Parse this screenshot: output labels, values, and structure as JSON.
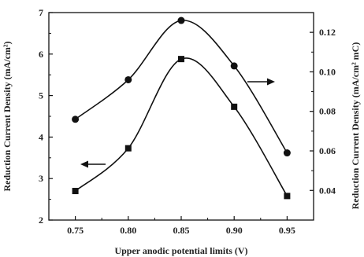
{
  "chart_data": {
    "type": "line",
    "x": [
      0.75,
      0.8,
      0.85,
      0.9,
      0.95
    ],
    "x_ticks": [
      "0.75",
      "0.80",
      "0.85",
      "0.90",
      "0.95"
    ],
    "xlim": [
      0.725,
      0.975
    ],
    "xlabel": "Upper anodic  potential limits (V)",
    "left_axis": {
      "ylim": [
        2,
        7
      ],
      "ticks": [
        "2",
        "3",
        "4",
        "5",
        "6",
        "7"
      ],
      "label": "Reduction Current Density (mA/cm²)"
    },
    "right_axis": {
      "ylim": [
        0.025,
        0.13
      ],
      "ticks": [
        "0.04",
        "0.06",
        "0.08",
        "0.10",
        "0.12"
      ],
      "label": "Reduction Current Density (mA/cm² mC)"
    },
    "series": [
      {
        "marker": "square",
        "axis": "left",
        "values": [
          2.7,
          3.73,
          5.88,
          4.73,
          2.58
        ]
      },
      {
        "marker": "circle",
        "axis": "right",
        "values": [
          0.076,
          0.096,
          0.126,
          0.103,
          0.059
        ]
      }
    ],
    "annotations": [
      {
        "type": "arrow",
        "direction": "left",
        "points_to_axis": "left"
      },
      {
        "type": "arrow",
        "direction": "right",
        "points_to_axis": "right"
      }
    ],
    "grid": false
  }
}
